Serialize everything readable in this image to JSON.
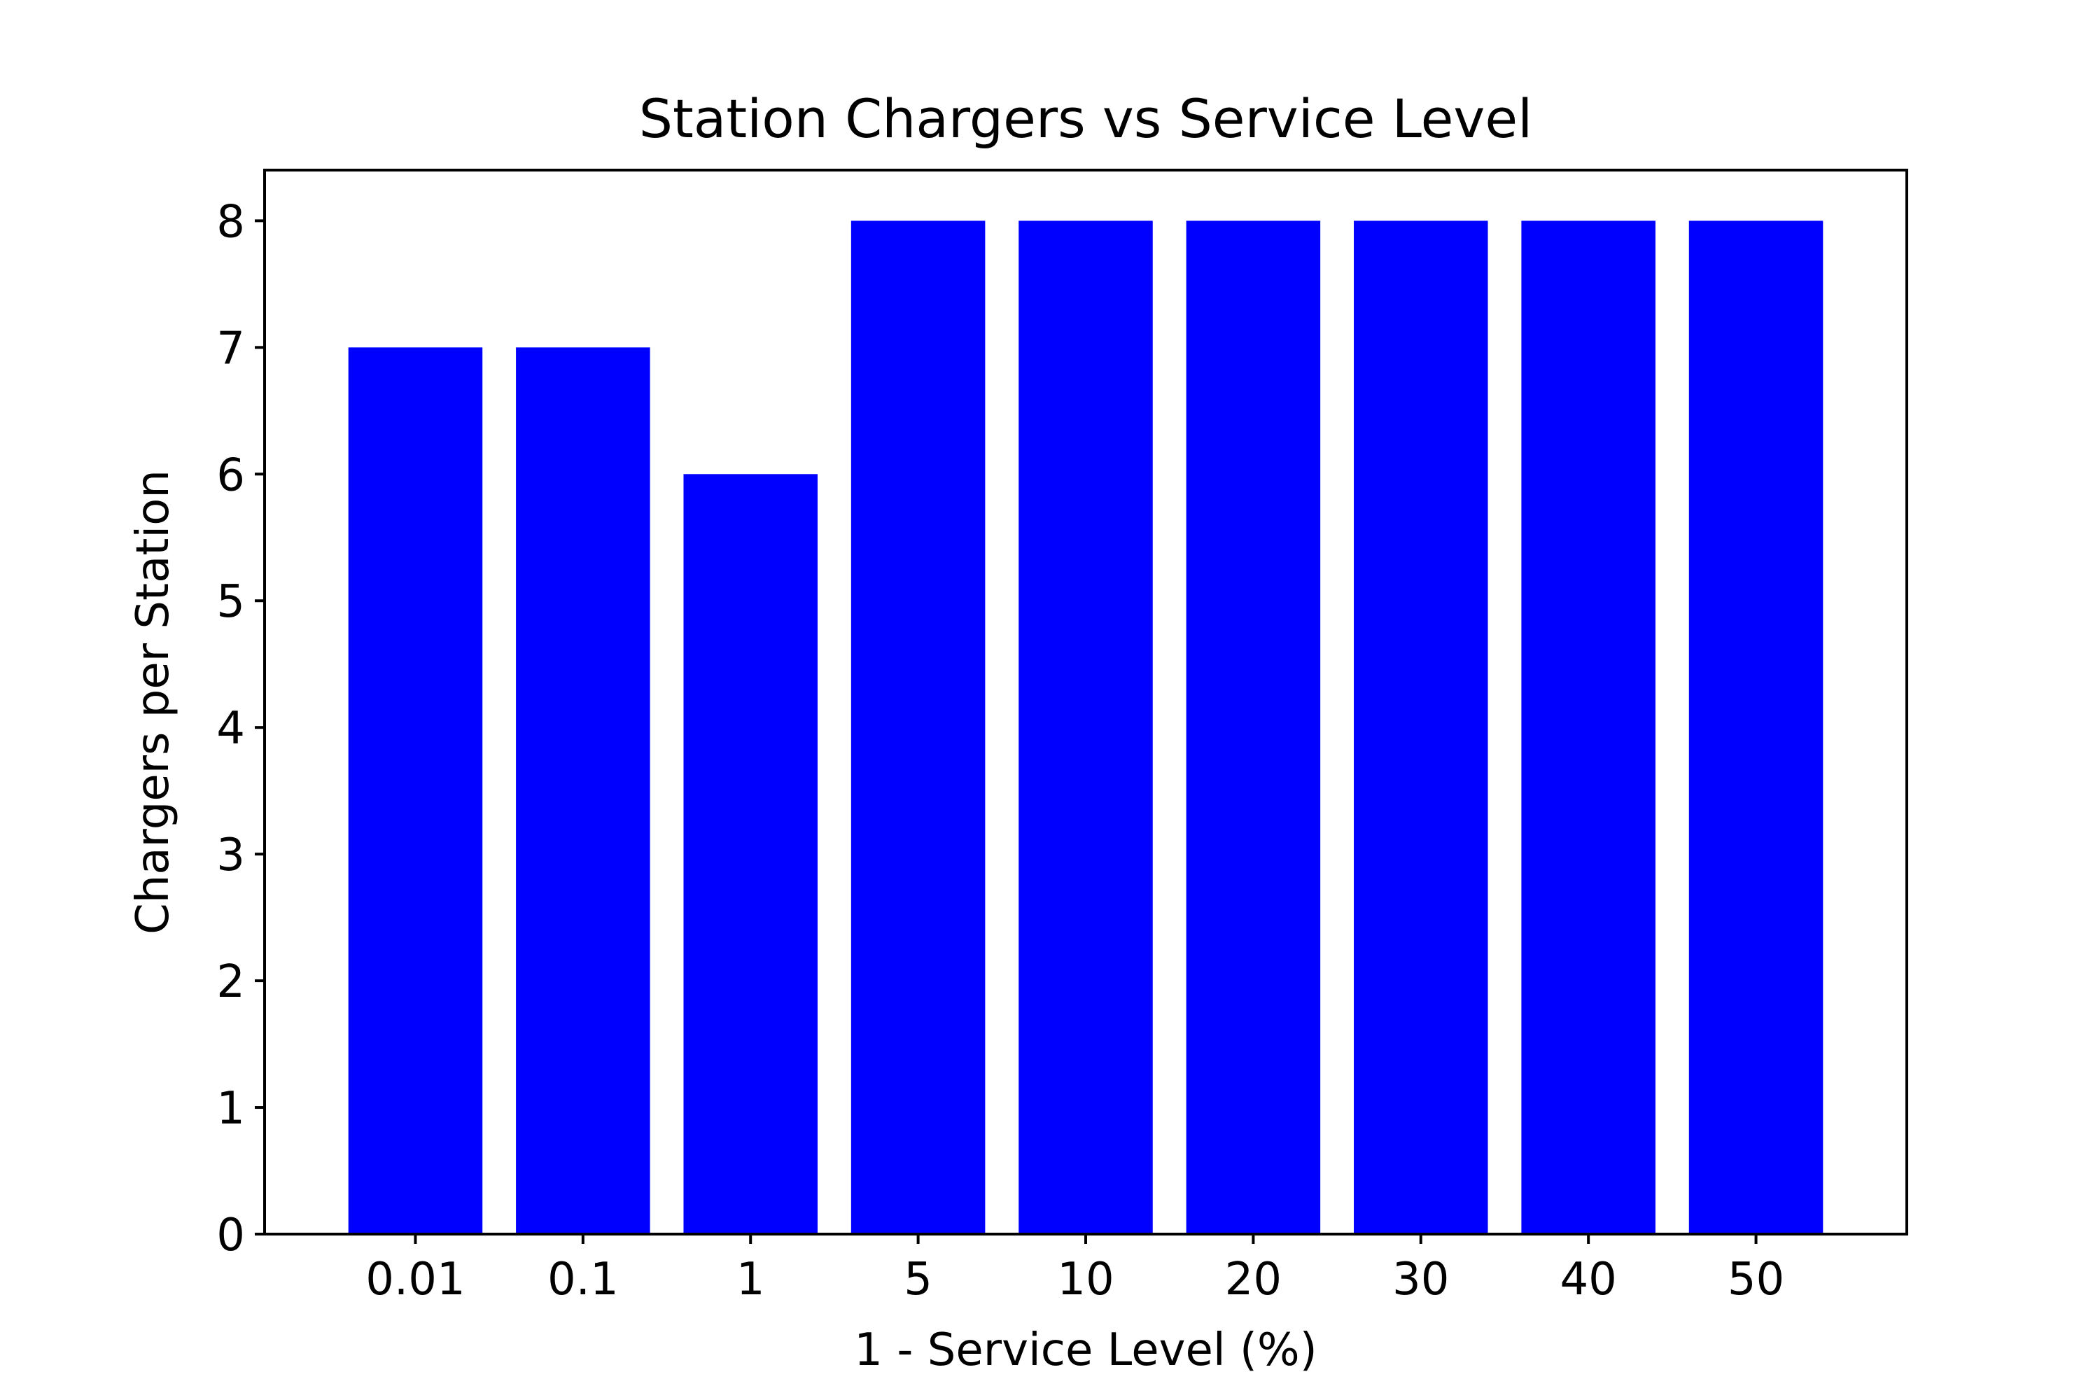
{
  "chart_data": {
    "type": "bar",
    "title": "Station Chargers vs Service Level",
    "xlabel": "1 - Service Level (%)",
    "ylabel": "Chargers per Station",
    "categories": [
      "0.01",
      "0.1",
      "1",
      "5",
      "10",
      "20",
      "30",
      "40",
      "50"
    ],
    "values": [
      7,
      7,
      6,
      8,
      8,
      8,
      8,
      8,
      8
    ],
    "ylim": [
      0,
      8.4
    ],
    "yticks": [
      0,
      1,
      2,
      3,
      4,
      5,
      6,
      7,
      8
    ],
    "bar_color": "#0000ff",
    "grid": false,
    "legend": false
  }
}
